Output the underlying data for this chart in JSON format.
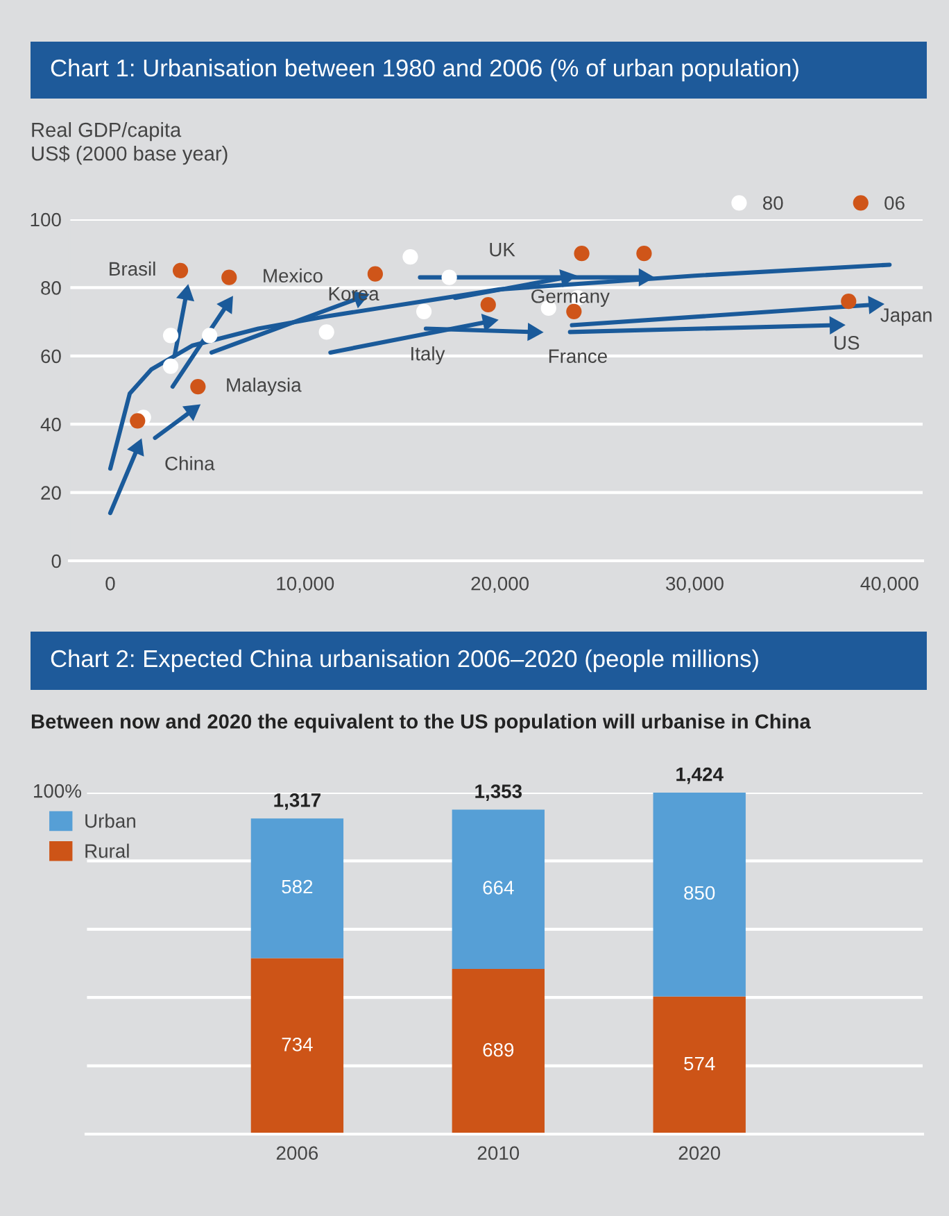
{
  "chart_data": [
    {
      "type": "scatter",
      "title": "Chart 1: Urbanisation between 1980 and 2006 (% of urban population)",
      "ylabel": "Real GDP/capita\nUS$ (2000 base year)",
      "xlim": [
        -2100,
        41700
      ],
      "ylim": [
        0,
        100
      ],
      "xticks": [
        0,
        {
          "value": 10000,
          "label": "10,000"
        },
        {
          "value": 20000,
          "label": "20,000"
        },
        {
          "value": 30000,
          "label": "30,000"
        },
        {
          "value": 40000,
          "label": "40,000"
        }
      ],
      "yticks": [
        0,
        20,
        40,
        60,
        80,
        100
      ],
      "grid": "y",
      "legend": "top right",
      "marker": "circle",
      "series": [
        {
          "name": "80",
          "color": "#ffffff",
          "x": [
            1700,
            3100,
            5100,
            3100,
            11100,
            15400,
            17400,
            16100,
            22500,
            24000
          ],
          "values": [
            42,
            66,
            66,
            57,
            67,
            89,
            83,
            73,
            74,
            77
          ]
        },
        {
          "name": "06",
          "color": "#cf5519",
          "x": [
            1400,
            3600,
            6100,
            4500,
            13600,
            19400,
            24200,
            27400,
            23800,
            37900
          ],
          "values": [
            41,
            85,
            83,
            51,
            84,
            75,
            90,
            90,
            73,
            76
          ]
        },
        {
          "type": "line",
          "color": "#1a5a9a",
          "marker": "none",
          "x": [
            0,
            1000,
            2100,
            4200,
            7600,
            11000,
            20000,
            30000,
            40000
          ],
          "values": [
            27,
            49,
            56,
            63,
            68,
            71.5,
            79.5,
            83.5,
            86.7
          ]
        },
        {
          "type": "line",
          "color": "#1a5a9a",
          "marker": "triangle",
          "x": [
            0,
            1400
          ],
          "values": [
            14,
            33
          ]
        },
        {
          "type": "line",
          "color": "#1a5a9a",
          "marker": "triangle",
          "x": [
            2300,
            4200
          ],
          "values": [
            36,
            44
          ]
        },
        {
          "type": "line",
          "color": "#1a5a9a",
          "marker": "triangle",
          "x": [
            3300,
            3900
          ],
          "values": [
            60,
            78
          ]
        },
        {
          "type": "line",
          "color": "#1a5a9a",
          "marker": "triangle",
          "x": [
            3200,
            6000
          ],
          "values": [
            51,
            75
          ]
        },
        {
          "type": "line",
          "color": "#1a5a9a",
          "marker": "triangle",
          "x": [
            5200,
            12800
          ],
          "values": [
            61,
            77
          ]
        },
        {
          "type": "line",
          "color": "#1a5a9a",
          "marker": "triangle",
          "x": [
            11300,
            19400
          ],
          "values": [
            61,
            70
          ]
        },
        {
          "type": "line",
          "color": "#1a5a9a",
          "marker": "triangle",
          "x": [
            15900,
            27400
          ],
          "values": [
            83,
            83
          ]
        },
        {
          "type": "line",
          "color": "#1a5a9a",
          "marker": "triangle",
          "x": [
            17700,
            23400
          ],
          "values": [
            77,
            83
          ]
        },
        {
          "type": "line",
          "color": "#1a5a9a",
          "marker": "triangle",
          "x": [
            16200,
            21700
          ],
          "values": [
            68,
            67
          ]
        },
        {
          "type": "line",
          "color": "#1a5a9a",
          "marker": "triangle",
          "x": [
            23700,
            39200
          ],
          "values": [
            69,
            75
          ]
        },
        {
          "type": "line",
          "color": "#1a5a9a",
          "marker": "triangle",
          "x": [
            23600,
            37200
          ],
          "values": [
            67,
            69
          ]
        }
      ],
      "annotations": [
        {
          "text": "Brasil",
          "x": 3600,
          "y": 85
        },
        {
          "text": "Mexico",
          "x": 6100,
          "y": 83
        },
        {
          "text": "Malaysia",
          "x": 4500,
          "y": 51
        },
        {
          "text": "China",
          "x": 1400,
          "y": 41
        },
        {
          "text": "Korea",
          "x": 11100,
          "y": 67
        },
        "Italy",
        "UK",
        {
          "text": "Germany",
          "x": 24000,
          "y": 77
        },
        {
          "text": "France",
          "x": 23800,
          "y": 73
        },
        {
          "text": "Japan",
          "x": 37900,
          "y": 76
        },
        {
          "text": "US",
          "x": 37200,
          "y": 69
        }
      ]
    },
    {
      "type": "bar",
      "stacked": true,
      "title": "Chart 2: Expected China urbanisation 2006–2020 (people millions)",
      "subtitle": "Between now and 2020 the equivalent to the US population will urbanise in China",
      "categories": [
        "2006",
        "2010",
        "2020"
      ],
      "ylim": [
        0,
        1424
      ],
      "yticks": [
        {
          "value": 0,
          "label": null
        },
        {
          "value": 284.8,
          "label": null
        },
        {
          "value": 569.6,
          "label": null
        },
        {
          "value": 854.4,
          "label": null
        },
        {
          "value": 1139.2,
          "label": null
        },
        {
          "value": 1424,
          "label": null
        }
      ],
      "annotations": [
        "100%"
      ],
      "grid": "y",
      "legend": "top left",
      "data_labels": true,
      "series": [
        {
          "name": "Rural",
          "color": "#cd5417",
          "values": [
            734,
            689,
            574
          ]
        },
        {
          "name": "Urban",
          "color": "#569fd6",
          "values": [
            582,
            664,
            850
          ]
        }
      ],
      "totals": [
        "1,317",
        "1,353",
        "1,424"
      ]
    }
  ]
}
